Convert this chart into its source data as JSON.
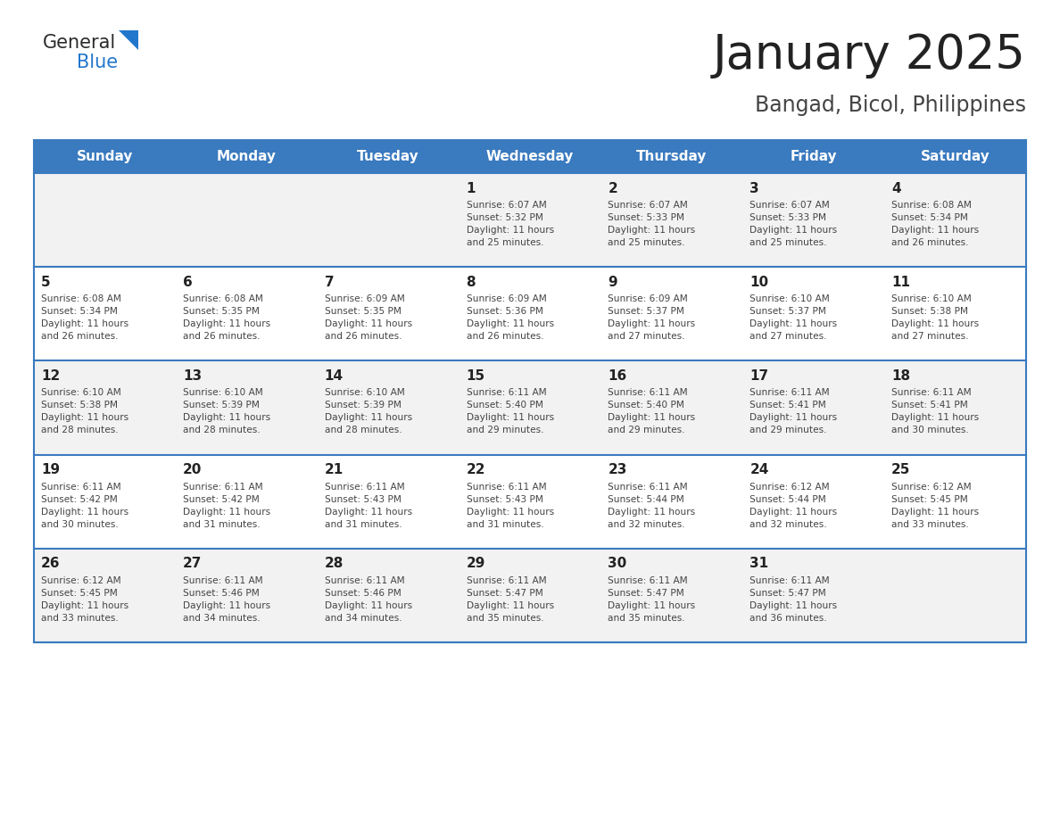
{
  "title": "January 2025",
  "subtitle": "Bangad, Bicol, Philippines",
  "days_of_week": [
    "Sunday",
    "Monday",
    "Tuesday",
    "Wednesday",
    "Thursday",
    "Friday",
    "Saturday"
  ],
  "header_bg": "#3a7abf",
  "header_text": "#ffffff",
  "row_bg_light": "#f2f2f2",
  "row_bg_white": "#ffffff",
  "divider_color": "#3a7abf",
  "day_num_color": "#222222",
  "text_color": "#444444",
  "title_color": "#222222",
  "subtitle_color": "#444444",
  "calendar": [
    [
      {
        "day": null,
        "info": null
      },
      {
        "day": null,
        "info": null
      },
      {
        "day": null,
        "info": null
      },
      {
        "day": 1,
        "info": "Sunrise: 6:07 AM\nSunset: 5:32 PM\nDaylight: 11 hours\nand 25 minutes."
      },
      {
        "day": 2,
        "info": "Sunrise: 6:07 AM\nSunset: 5:33 PM\nDaylight: 11 hours\nand 25 minutes."
      },
      {
        "day": 3,
        "info": "Sunrise: 6:07 AM\nSunset: 5:33 PM\nDaylight: 11 hours\nand 25 minutes."
      },
      {
        "day": 4,
        "info": "Sunrise: 6:08 AM\nSunset: 5:34 PM\nDaylight: 11 hours\nand 26 minutes."
      }
    ],
    [
      {
        "day": 5,
        "info": "Sunrise: 6:08 AM\nSunset: 5:34 PM\nDaylight: 11 hours\nand 26 minutes."
      },
      {
        "day": 6,
        "info": "Sunrise: 6:08 AM\nSunset: 5:35 PM\nDaylight: 11 hours\nand 26 minutes."
      },
      {
        "day": 7,
        "info": "Sunrise: 6:09 AM\nSunset: 5:35 PM\nDaylight: 11 hours\nand 26 minutes."
      },
      {
        "day": 8,
        "info": "Sunrise: 6:09 AM\nSunset: 5:36 PM\nDaylight: 11 hours\nand 26 minutes."
      },
      {
        "day": 9,
        "info": "Sunrise: 6:09 AM\nSunset: 5:37 PM\nDaylight: 11 hours\nand 27 minutes."
      },
      {
        "day": 10,
        "info": "Sunrise: 6:10 AM\nSunset: 5:37 PM\nDaylight: 11 hours\nand 27 minutes."
      },
      {
        "day": 11,
        "info": "Sunrise: 6:10 AM\nSunset: 5:38 PM\nDaylight: 11 hours\nand 27 minutes."
      }
    ],
    [
      {
        "day": 12,
        "info": "Sunrise: 6:10 AM\nSunset: 5:38 PM\nDaylight: 11 hours\nand 28 minutes."
      },
      {
        "day": 13,
        "info": "Sunrise: 6:10 AM\nSunset: 5:39 PM\nDaylight: 11 hours\nand 28 minutes."
      },
      {
        "day": 14,
        "info": "Sunrise: 6:10 AM\nSunset: 5:39 PM\nDaylight: 11 hours\nand 28 minutes."
      },
      {
        "day": 15,
        "info": "Sunrise: 6:11 AM\nSunset: 5:40 PM\nDaylight: 11 hours\nand 29 minutes."
      },
      {
        "day": 16,
        "info": "Sunrise: 6:11 AM\nSunset: 5:40 PM\nDaylight: 11 hours\nand 29 minutes."
      },
      {
        "day": 17,
        "info": "Sunrise: 6:11 AM\nSunset: 5:41 PM\nDaylight: 11 hours\nand 29 minutes."
      },
      {
        "day": 18,
        "info": "Sunrise: 6:11 AM\nSunset: 5:41 PM\nDaylight: 11 hours\nand 30 minutes."
      }
    ],
    [
      {
        "day": 19,
        "info": "Sunrise: 6:11 AM\nSunset: 5:42 PM\nDaylight: 11 hours\nand 30 minutes."
      },
      {
        "day": 20,
        "info": "Sunrise: 6:11 AM\nSunset: 5:42 PM\nDaylight: 11 hours\nand 31 minutes."
      },
      {
        "day": 21,
        "info": "Sunrise: 6:11 AM\nSunset: 5:43 PM\nDaylight: 11 hours\nand 31 minutes."
      },
      {
        "day": 22,
        "info": "Sunrise: 6:11 AM\nSunset: 5:43 PM\nDaylight: 11 hours\nand 31 minutes."
      },
      {
        "day": 23,
        "info": "Sunrise: 6:11 AM\nSunset: 5:44 PM\nDaylight: 11 hours\nand 32 minutes."
      },
      {
        "day": 24,
        "info": "Sunrise: 6:12 AM\nSunset: 5:44 PM\nDaylight: 11 hours\nand 32 minutes."
      },
      {
        "day": 25,
        "info": "Sunrise: 6:12 AM\nSunset: 5:45 PM\nDaylight: 11 hours\nand 33 minutes."
      }
    ],
    [
      {
        "day": 26,
        "info": "Sunrise: 6:12 AM\nSunset: 5:45 PM\nDaylight: 11 hours\nand 33 minutes."
      },
      {
        "day": 27,
        "info": "Sunrise: 6:11 AM\nSunset: 5:46 PM\nDaylight: 11 hours\nand 34 minutes."
      },
      {
        "day": 28,
        "info": "Sunrise: 6:11 AM\nSunset: 5:46 PM\nDaylight: 11 hours\nand 34 minutes."
      },
      {
        "day": 29,
        "info": "Sunrise: 6:11 AM\nSunset: 5:47 PM\nDaylight: 11 hours\nand 35 minutes."
      },
      {
        "day": 30,
        "info": "Sunrise: 6:11 AM\nSunset: 5:47 PM\nDaylight: 11 hours\nand 35 minutes."
      },
      {
        "day": 31,
        "info": "Sunrise: 6:11 AM\nSunset: 5:47 PM\nDaylight: 11 hours\nand 36 minutes."
      },
      {
        "day": null,
        "info": null
      }
    ]
  ],
  "row_bg_colors": [
    "#f2f2f2",
    "#ffffff",
    "#f2f2f2",
    "#ffffff",
    "#f2f2f2"
  ]
}
